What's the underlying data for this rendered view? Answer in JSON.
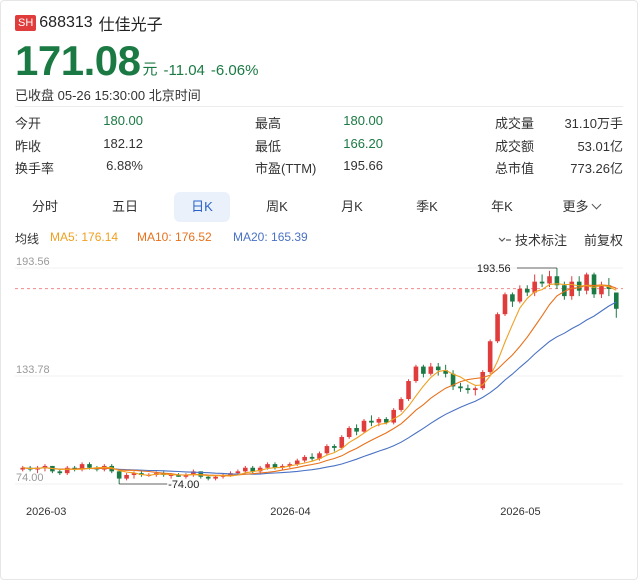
{
  "header": {
    "exchange": "SH",
    "code": "688313",
    "name": "仕佳光子"
  },
  "quote": {
    "price": "171.08",
    "unit": "元",
    "change": "-11.04",
    "change_pct": "-6.06%",
    "status": "已收盘 05-26 15:30:00 北京时间"
  },
  "stats": [
    {
      "label": "今开",
      "value": "180.00",
      "color": "green"
    },
    {
      "label": "最高",
      "value": "180.00",
      "color": "green"
    },
    {
      "label": "成交量",
      "value": "31.10万手",
      "color": "dark"
    },
    {
      "label": "昨收",
      "value": "182.12",
      "color": "dark"
    },
    {
      "label": "最低",
      "value": "166.20",
      "color": "green"
    },
    {
      "label": "成交额",
      "value": "53.01亿",
      "color": "dark"
    },
    {
      "label": "换手率",
      "value": "6.88%",
      "color": "dark"
    },
    {
      "label": "市盈(TTM)",
      "value": "195.66",
      "color": "dark"
    },
    {
      "label": "总市值",
      "value": "773.26亿",
      "color": "dark"
    }
  ],
  "tabs": [
    {
      "label": "分时",
      "active": false
    },
    {
      "label": "五日",
      "active": false
    },
    {
      "label": "日K",
      "active": true
    },
    {
      "label": "周K",
      "active": false
    },
    {
      "label": "月K",
      "active": false
    },
    {
      "label": "季K",
      "active": false
    },
    {
      "label": "年K",
      "active": false
    },
    {
      "label": "更多",
      "active": false
    }
  ],
  "ma_legend": {
    "label": "均线",
    "ma5": "MA5: 176.14",
    "ma10": "MA10: 176.52",
    "ma20": "MA20: 165.39"
  },
  "tools": {
    "indicator": "技术标注",
    "adjust": "前复权",
    "indicator_icon": "indicator-icon"
  },
  "colors": {
    "up": "#e03c3c",
    "down": "#1b7a44",
    "ma5": "#f0a020",
    "ma10": "#e8711c",
    "ma20": "#4a72c4",
    "accent": "#2a62c9",
    "ref_line": "#f08a8a"
  },
  "chart_data": {
    "type": "candlestick",
    "y_ticks": [
      "193.56",
      "133.78",
      "74.00"
    ],
    "ylim": [
      74.0,
      193.56
    ],
    "x_ticks": [
      "2026-03",
      "2026-04",
      "2026-05"
    ],
    "high_annotation": "193.56",
    "low_annotation": "74.00",
    "reference_price": 182.12,
    "ma_legend_values": {
      "ma5": 176.14,
      "ma10": 176.52,
      "ma20": 165.39
    },
    "ohlc": [
      [
        82,
        84,
        81,
        83
      ],
      [
        83,
        84,
        81,
        82
      ],
      [
        82,
        84,
        80,
        83
      ],
      [
        83,
        85,
        81,
        84
      ],
      [
        84,
        84,
        80,
        81
      ],
      [
        81,
        82,
        79,
        80
      ],
      [
        80,
        84,
        79,
        83
      ],
      [
        83,
        84,
        81,
        82
      ],
      [
        82,
        86,
        81,
        85
      ],
      [
        85,
        86,
        82,
        83
      ],
      [
        83,
        84,
        81,
        82
      ],
      [
        82,
        85,
        81,
        84
      ],
      [
        84,
        85,
        80,
        81
      ],
      [
        81,
        82,
        74,
        77
      ],
      [
        77,
        80,
        76,
        79
      ],
      [
        79,
        81,
        77,
        80
      ],
      [
        80,
        81,
        78,
        79
      ],
      [
        79,
        80,
        78,
        79
      ],
      [
        79,
        81,
        78,
        80
      ],
      [
        80,
        81,
        78,
        79
      ],
      [
        79,
        80,
        77,
        79
      ],
      [
        79,
        80,
        78,
        78
      ],
      [
        78,
        80,
        77,
        79
      ],
      [
        79,
        82,
        78,
        81
      ],
      [
        81,
        81,
        77,
        78
      ],
      [
        78,
        79,
        76,
        77
      ],
      [
        77,
        79,
        76,
        78
      ],
      [
        78,
        80,
        77,
        79
      ],
      [
        79,
        81,
        78,
        80
      ],
      [
        80,
        82,
        79,
        81
      ],
      [
        81,
        84,
        80,
        83
      ],
      [
        83,
        84,
        80,
        81
      ],
      [
        81,
        84,
        80,
        83
      ],
      [
        83,
        86,
        82,
        85
      ],
      [
        85,
        86,
        82,
        83
      ],
      [
        83,
        85,
        82,
        84
      ],
      [
        84,
        86,
        83,
        85
      ],
      [
        85,
        88,
        84,
        87
      ],
      [
        87,
        90,
        86,
        89
      ],
      [
        89,
        91,
        87,
        88
      ],
      [
        88,
        92,
        87,
        91
      ],
      [
        91,
        96,
        90,
        95
      ],
      [
        95,
        96,
        92,
        94
      ],
      [
        94,
        101,
        93,
        100
      ],
      [
        100,
        106,
        99,
        105
      ],
      [
        105,
        107,
        101,
        103
      ],
      [
        103,
        110,
        102,
        109
      ],
      [
        109,
        112,
        106,
        108
      ],
      [
        108,
        111,
        106,
        110
      ],
      [
        110,
        111,
        107,
        108
      ],
      [
        108,
        116,
        107,
        115
      ],
      [
        115,
        122,
        114,
        121
      ],
      [
        121,
        132,
        120,
        131
      ],
      [
        131,
        140,
        130,
        139
      ],
      [
        139,
        140,
        133,
        135
      ],
      [
        135,
        141,
        134,
        139
      ],
      [
        139,
        141,
        134,
        137
      ],
      [
        137,
        140,
        133,
        135
      ],
      [
        135,
        137,
        126,
        128
      ],
      [
        128,
        130,
        125,
        127
      ],
      [
        127,
        129,
        124,
        126
      ],
      [
        126,
        128,
        123,
        127
      ],
      [
        127,
        137,
        126,
        136
      ],
      [
        136,
        154,
        135,
        153
      ],
      [
        153,
        169,
        152,
        168
      ],
      [
        168,
        180,
        167,
        179
      ],
      [
        179,
        180,
        172,
        175
      ],
      [
        175,
        184,
        174,
        182
      ],
      [
        182,
        184,
        178,
        180
      ],
      [
        180,
        190,
        178,
        186
      ],
      [
        186,
        190,
        183,
        185
      ],
      [
        185,
        192,
        183,
        189
      ],
      [
        189,
        193.56,
        182,
        184
      ],
      [
        184,
        186,
        176,
        178
      ],
      [
        178,
        189,
        176,
        186
      ],
      [
        186,
        189,
        178,
        181
      ],
      [
        181,
        191,
        179,
        190
      ],
      [
        190,
        191,
        177,
        179
      ],
      [
        179,
        186,
        177,
        184
      ],
      [
        184,
        188,
        178,
        182
      ],
      [
        180,
        180,
        166,
        171
      ]
    ]
  }
}
